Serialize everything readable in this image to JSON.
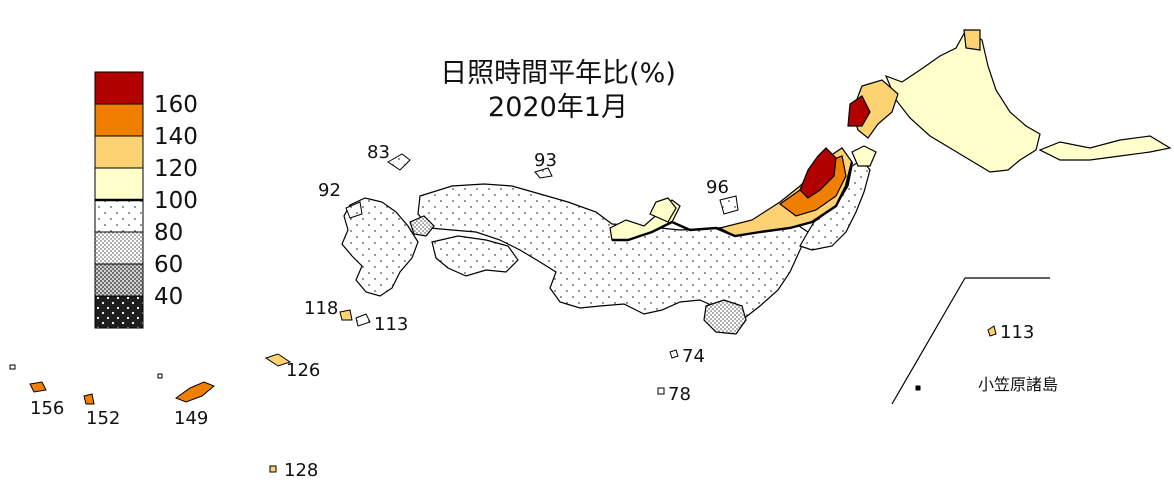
{
  "title": {
    "line1": "日照時間平年比(%)",
    "line2": "2020年1月"
  },
  "legend": {
    "labels": [
      "160",
      "140",
      "120",
      "100",
      "80",
      "60",
      "40"
    ],
    "classes": [
      {
        "name": "160以上",
        "color": "#b20000",
        "pattern": "solid"
      },
      {
        "name": "140-160",
        "color": "#f07f00",
        "pattern": "solid"
      },
      {
        "name": "120-140",
        "color": "#fdd273",
        "pattern": "solid"
      },
      {
        "name": "100-120",
        "color": "#ffffcc",
        "pattern": "solid"
      },
      {
        "name": "80-100",
        "color": "#ffffff",
        "pattern": "sparse-dots"
      },
      {
        "name": "60-80",
        "color": "#d8d8d8",
        "pattern": "checker"
      },
      {
        "name": "40-60",
        "color": "#999999",
        "pattern": "checker-dark"
      },
      {
        "name": "40未満",
        "color": "#222222",
        "pattern": "dark-dots"
      }
    ]
  },
  "station_values": {
    "v83": "83",
    "v93": "93",
    "v92": "92",
    "v96": "96",
    "v118": "118",
    "v113_south": "113",
    "v74": "74",
    "v78": "78",
    "v126": "126",
    "v149": "149",
    "v152": "152",
    "v156": "156",
    "v128": "128",
    "v113_ogasawara": "113"
  },
  "inset_label": "小笠原諸島"
}
